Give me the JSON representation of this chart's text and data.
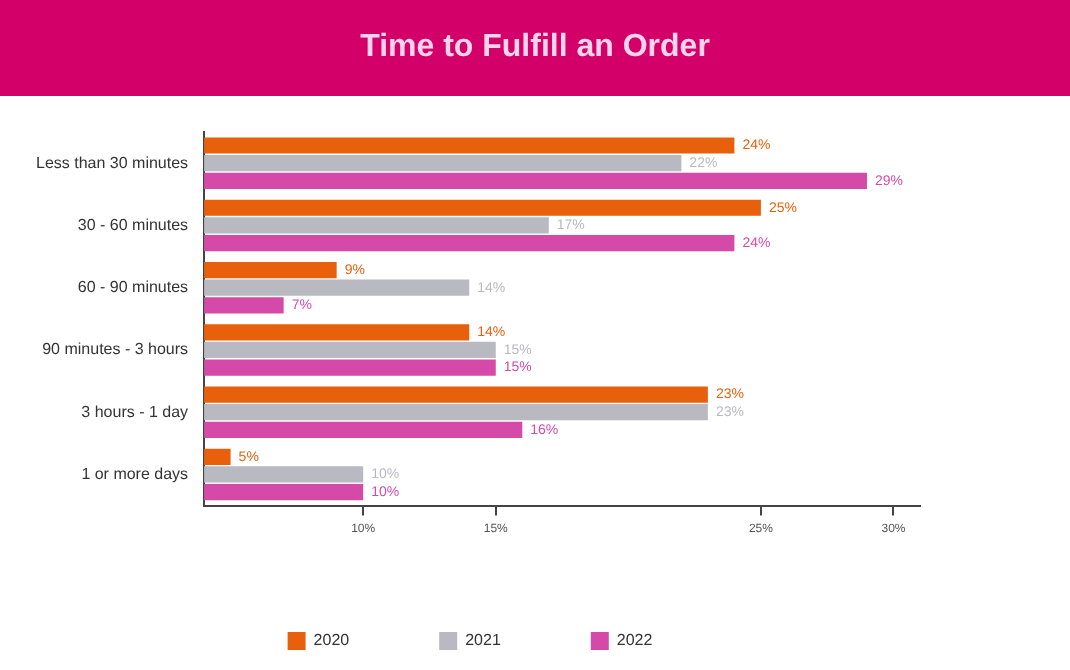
{
  "chart_data": {
    "type": "bar",
    "orientation": "horizontal",
    "title": "Time to Fulfill an Order",
    "categories": [
      "Less than 30 minutes",
      "30 - 60 minutes",
      "60 - 90 minutes",
      "90 minutes - 3 hours",
      "3 hours - 1 day",
      "1 or more days"
    ],
    "series": [
      {
        "name": "2020",
        "color": "#e8600c",
        "values": [
          24,
          25,
          9,
          14,
          23,
          5
        ],
        "value_labels": [
          "24%",
          "25%",
          "9%",
          "14%",
          "23%",
          "5%"
        ]
      },
      {
        "name": "2021",
        "color": "#b9b9c1",
        "values": [
          22,
          17,
          14,
          15,
          23,
          10
        ],
        "value_labels": [
          "22%",
          "17%",
          "14%",
          "15%",
          "23%",
          "10%"
        ]
      },
      {
        "name": "2022",
        "color": "#d54aa8",
        "values": [
          29,
          24,
          7,
          15,
          16,
          10
        ],
        "value_labels": [
          "29%",
          "24%",
          "7%",
          "15%",
          "16%",
          "10%"
        ]
      }
    ],
    "xlim": [
      4,
      31
    ],
    "xticks": [
      {
        "value": 10,
        "label": "10%"
      },
      {
        "value": 15,
        "label": "15%"
      },
      {
        "value": 25,
        "label": "25%"
      },
      {
        "value": 30,
        "label": "30%"
      }
    ],
    "grid": false,
    "legend": "bottom"
  }
}
